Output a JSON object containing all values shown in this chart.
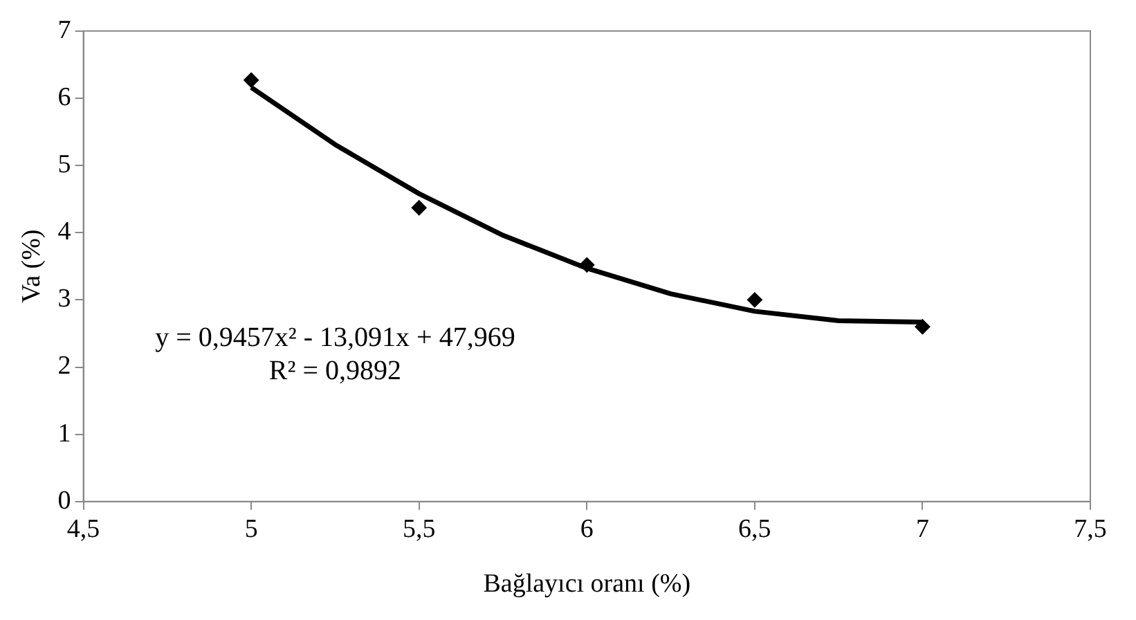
{
  "chart_data": {
    "type": "scatter",
    "xlabel": "Bağlayıcı oranı (%)",
    "ylabel": "Va (%)",
    "xlim": [
      4.5,
      7.5
    ],
    "xticks": [
      {
        "value": 4.5,
        "label": "4,5"
      },
      5,
      {
        "value": 5.5,
        "label": "5,5"
      },
      6,
      {
        "value": 6.5,
        "label": "6,5"
      },
      7,
      {
        "value": 7.5,
        "label": "7,5"
      }
    ],
    "ylim": [
      0,
      7
    ],
    "yticks": [
      0,
      1,
      2,
      3,
      4,
      5,
      6,
      7
    ],
    "grid": false,
    "legend": false,
    "annotations": [
      "y = 0,9457x² - 13,091x + 47,969",
      "R² = 0,9892"
    ],
    "series": [
      {
        "type": "scatter",
        "color": "#000000",
        "marker": "diamond",
        "x": [
          5,
          5.5,
          6,
          6.5,
          7
        ],
        "values": [
          6.27,
          4.37,
          3.52,
          3.0,
          2.6
        ]
      },
      {
        "type": "line",
        "color": "#000000",
        "marker": "none",
        "line_style": "solid",
        "x": [
          5,
          5.25,
          5.5,
          5.75,
          6,
          6.25,
          6.5,
          6.75,
          7
        ],
        "values": [
          6.16,
          5.31,
          4.58,
          3.96,
          3.47,
          3.09,
          2.83,
          2.69,
          2.67
        ]
      }
    ]
  }
}
